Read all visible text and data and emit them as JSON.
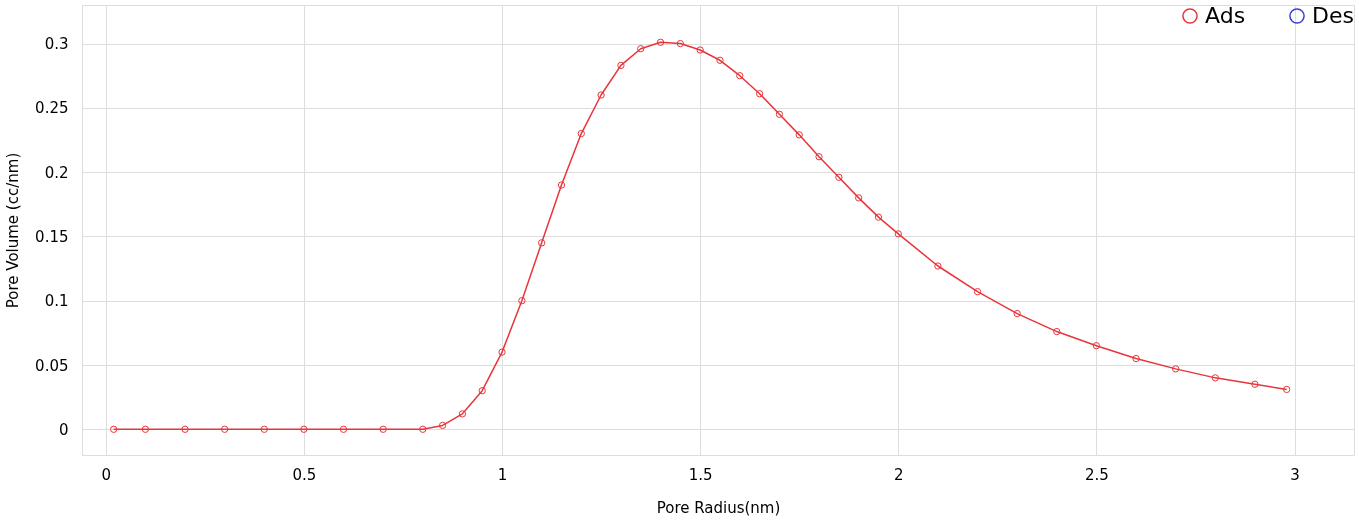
{
  "chart_data": {
    "type": "line",
    "xlabel": "Pore Radius(nm)",
    "ylabel": "Pore Volume (cc/nm)",
    "xlim": [
      -0.06,
      3.15
    ],
    "ylim": [
      -0.02,
      0.33
    ],
    "xticks": [
      0,
      0.5,
      1,
      1.5,
      2,
      2.5,
      3
    ],
    "yticks": [
      0,
      0.05,
      0.1,
      0.15,
      0.2,
      0.25,
      0.3
    ],
    "grid": true,
    "legend": "top right",
    "marker": "circle",
    "line_style": "solid",
    "x": [
      0.02,
      0.1,
      0.2,
      0.3,
      0.4,
      0.5,
      0.6,
      0.7,
      0.8,
      0.85,
      0.9,
      0.95,
      1.0,
      1.05,
      1.1,
      1.15,
      1.2,
      1.25,
      1.3,
      1.35,
      1.4,
      1.45,
      1.5,
      1.55,
      1.6,
      1.65,
      1.7,
      1.75,
      1.8,
      1.85,
      1.9,
      1.95,
      2.0,
      2.1,
      2.2,
      2.3,
      2.4,
      2.5,
      2.6,
      2.7,
      2.8,
      2.9,
      2.98
    ],
    "series": [
      {
        "name": "Ads",
        "color": "#e8353b",
        "values": [
          0,
          0,
          0,
          0,
          0,
          0,
          0,
          0,
          0,
          0.003,
          0.012,
          0.03,
          0.06,
          0.1,
          0.145,
          0.19,
          0.23,
          0.26,
          0.283,
          0.296,
          0.301,
          0.3,
          0.295,
          0.287,
          0.275,
          0.261,
          0.245,
          0.229,
          0.212,
          0.196,
          0.18,
          0.165,
          0.152,
          0.127,
          0.107,
          0.09,
          0.076,
          0.065,
          0.055,
          0.047,
          0.04,
          0.035,
          0.031
        ]
      },
      {
        "name": "Des",
        "color": "#3c3cd6",
        "values": [
          null,
          null,
          null,
          null,
          null,
          null,
          null,
          null,
          null,
          null,
          null,
          null,
          null,
          null,
          null,
          null,
          null,
          null,
          null,
          null,
          null,
          null,
          null,
          null,
          null,
          null,
          null,
          null,
          null,
          null,
          null,
          null,
          null,
          null,
          null,
          null,
          null,
          null,
          null,
          null,
          null,
          null,
          null
        ]
      }
    ]
  }
}
